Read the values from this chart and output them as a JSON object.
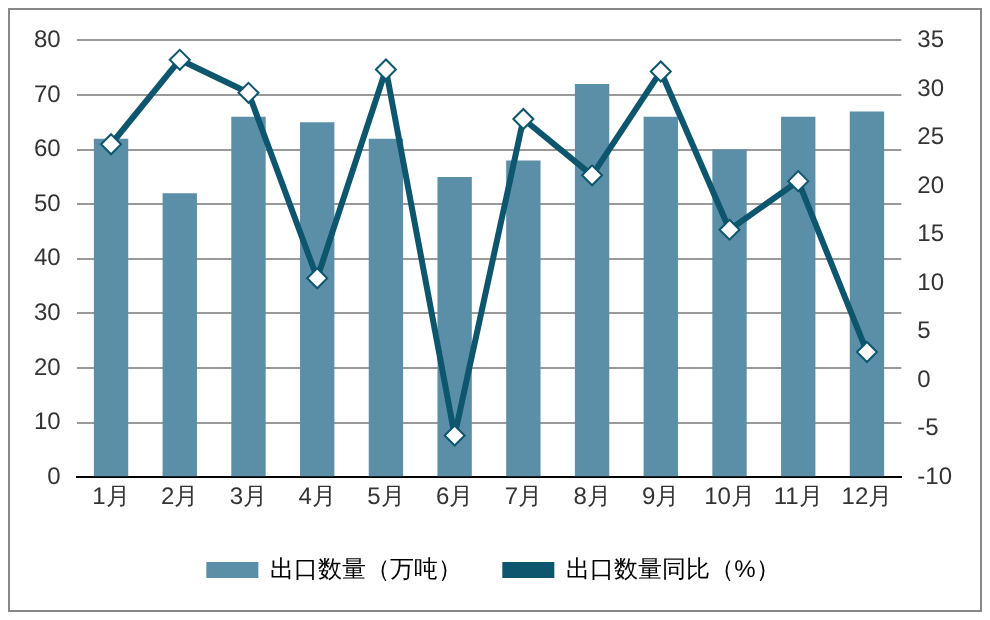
{
  "chart_data": {
    "type": "bar",
    "categories": [
      "1月",
      "2月",
      "3月",
      "4月",
      "5月",
      "6月",
      "7月",
      "8月",
      "9月",
      "10月",
      "11月",
      "12月"
    ],
    "series": [
      {
        "name": "出口数量（万吨）",
        "color": "#5b8fa8",
        "values": [
          62,
          52,
          66,
          65,
          62,
          55,
          58,
          72,
          66,
          60,
          66,
          67
        ]
      },
      {
        "name": "出口数量同比（%）",
        "type": "line",
        "axis": "y2",
        "color": "#0e566e",
        "marker": "diamond",
        "values": [
          24.3,
          33,
          29.6,
          10.5,
          32,
          -5.7,
          26.9,
          21.1,
          31.8,
          15.5,
          20.5,
          2.9
        ]
      }
    ],
    "ylim": [
      0,
      80
    ],
    "yticks": [
      0,
      10,
      20,
      30,
      40,
      50,
      60,
      70,
      80
    ],
    "y2lim": [
      -10,
      35
    ],
    "y2ticks": [
      -10,
      -5,
      0,
      5,
      10,
      15,
      20,
      25,
      30,
      35
    ],
    "grid": "y",
    "legend": "bottom"
  }
}
